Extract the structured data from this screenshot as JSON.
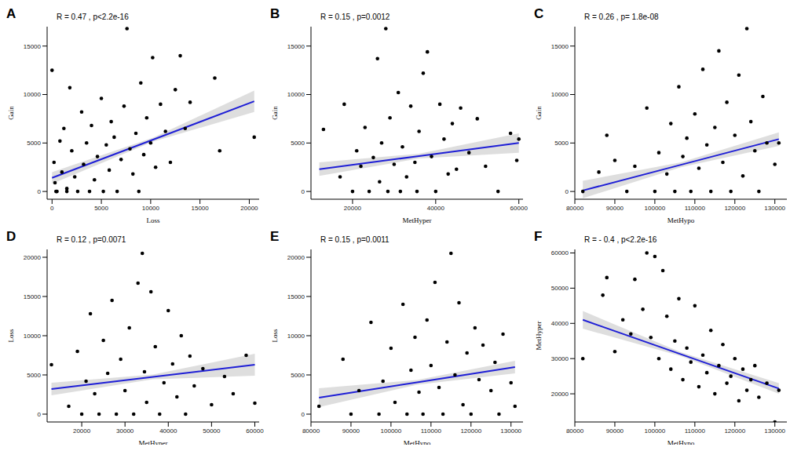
{
  "chart_data": [
    {
      "panel": "A",
      "type": "scatter",
      "annotation": "R = 0.47 , p<2.2e-16",
      "xlabel": "Loss",
      "ylabel": "Gain",
      "color": "#000000",
      "grid": false,
      "xlim": [
        -500,
        21000
      ],
      "xticks": [
        0,
        5000,
        10000,
        15000,
        20000
      ],
      "ylim": [
        -800,
        17000
      ],
      "yticks": [
        0,
        5000,
        10000,
        15000
      ],
      "x": [
        0,
        200,
        300,
        500,
        800,
        1000,
        1200,
        1500,
        1800,
        2000,
        2300,
        2600,
        3000,
        3200,
        3500,
        3800,
        4000,
        4300,
        4600,
        5000,
        5200,
        5500,
        5800,
        6000,
        6300,
        6600,
        7000,
        7300,
        7600,
        7900,
        8200,
        8500,
        8800,
        9000,
        9300,
        9600,
        10000,
        10200,
        10500,
        11000,
        11500,
        12000,
        12500,
        13000,
        13500,
        14000,
        16500,
        17000,
        20500,
        400,
        1500
      ],
      "y": [
        12500,
        3000,
        900,
        0,
        5200,
        2000,
        6500,
        300,
        10700,
        4200,
        1500,
        0,
        8200,
        2800,
        5000,
        0,
        6800,
        1200,
        3600,
        9600,
        0,
        4800,
        2200,
        7200,
        5600,
        0,
        3300,
        8800,
        16800,
        4400,
        1800,
        6000,
        0,
        11200,
        3800,
        7600,
        5000,
        13800,
        2500,
        9000,
        6200,
        3000,
        10500,
        14000,
        6500,
        9200,
        11700,
        4200,
        5600,
        0,
        0
      ],
      "fit": {
        "color": "#1f1fd6",
        "x": [
          0,
          10250,
          20500
        ],
        "y": [
          1400,
          5350,
          9300
        ],
        "lower": [
          800,
          5150,
          8200
        ],
        "upper": [
          2000,
          5550,
          10400
        ]
      }
    },
    {
      "panel": "B",
      "type": "scatter",
      "annotation": "R = 0.15 , p=0.0012",
      "xlabel": "MetHyper",
      "ylabel": "Gain",
      "color": "#000000",
      "grid": false,
      "xlim": [
        10000,
        61000
      ],
      "xticks": [
        20000,
        40000,
        60000
      ],
      "ylim": [
        -800,
        17000
      ],
      "yticks": [
        0,
        5000,
        10000,
        15000
      ],
      "x": [
        13000,
        17000,
        18000,
        20000,
        21000,
        22000,
        23000,
        24000,
        25000,
        26000,
        26500,
        27000,
        28000,
        28500,
        29000,
        30000,
        31000,
        31500,
        32000,
        33000,
        34000,
        35000,
        35500,
        36000,
        37000,
        38000,
        39000,
        40000,
        41000,
        42000,
        43000,
        44000,
        45000,
        46000,
        48000,
        50000,
        52000,
        55000,
        58000,
        59500,
        60000
      ],
      "y": [
        6400,
        1500,
        9000,
        0,
        4200,
        2600,
        6600,
        0,
        3500,
        13700,
        1000,
        5000,
        16800,
        0,
        7600,
        2800,
        10200,
        0,
        4600,
        1500,
        8800,
        3000,
        0,
        6200,
        12200,
        14400,
        3600,
        0,
        9000,
        5400,
        1800,
        7000,
        2300,
        8600,
        4000,
        7500,
        2600,
        0,
        6000,
        3200,
        5400
      ],
      "fit": {
        "color": "#1f1fd6",
        "x": [
          12000,
          36000,
          60000
        ],
        "y": [
          2300,
          3650,
          5000
        ],
        "lower": [
          1600,
          3400,
          4000
        ],
        "upper": [
          3000,
          3900,
          6000
        ]
      }
    },
    {
      "panel": "C",
      "type": "scatter",
      "annotation": "R = 0.26 , p= 1.8e-08",
      "xlabel": "MetHypo",
      "ylabel": "Gain",
      "color": "#000000",
      "grid": false,
      "xlim": [
        80000,
        133000
      ],
      "xticks": [
        80000,
        90000,
        100000,
        110000,
        120000,
        130000
      ],
      "ylim": [
        -800,
        17000
      ],
      "yticks": [
        0,
        5000,
        10000,
        15000
      ],
      "x": [
        82000,
        86000,
        88000,
        90000,
        93000,
        95000,
        98000,
        100000,
        101000,
        103000,
        104000,
        105000,
        106000,
        107000,
        108000,
        109000,
        110000,
        111000,
        112000,
        113000,
        114000,
        115000,
        116000,
        117000,
        118000,
        119000,
        120000,
        121000,
        122000,
        123000,
        124000,
        125000,
        126000,
        127000,
        128000,
        130000,
        131000
      ],
      "y": [
        0,
        2000,
        5800,
        3200,
        0,
        2600,
        8600,
        0,
        4000,
        1800,
        7000,
        0,
        10800,
        3600,
        5500,
        0,
        8000,
        2400,
        12600,
        4800,
        0,
        6600,
        14500,
        3000,
        9200,
        0,
        5800,
        12000,
        1600,
        16800,
        7200,
        4200,
        0,
        9800,
        5000,
        2800,
        5000
      ],
      "fit": {
        "color": "#1f1fd6",
        "x": [
          82000,
          106500,
          131000
        ],
        "y": [
          100,
          2750,
          5400
        ],
        "lower": [
          -700,
          2500,
          4700
        ],
        "upper": [
          1100,
          3000,
          6100
        ]
      }
    },
    {
      "panel": "D",
      "type": "scatter",
      "annotation": "R = 0.12 , p=0.0071",
      "xlabel": "MetHyper",
      "ylabel": "Loss",
      "color": "#000000",
      "grid": false,
      "xlim": [
        12000,
        61000
      ],
      "xticks": [
        20000,
        30000,
        40000,
        50000,
        60000
      ],
      "ylim": [
        -1000,
        21000
      ],
      "yticks": [
        0,
        5000,
        10000,
        15000,
        20000
      ],
      "x": [
        13000,
        17000,
        19000,
        20000,
        21000,
        22000,
        23000,
        24000,
        25000,
        26000,
        27000,
        28000,
        29000,
        30000,
        31000,
        32000,
        33000,
        34000,
        34500,
        35000,
        36000,
        37000,
        38000,
        39000,
        40000,
        41000,
        42000,
        43000,
        44000,
        45000,
        46000,
        48000,
        50000,
        53000,
        55000,
        58000,
        60000
      ],
      "y": [
        6300,
        1000,
        8000,
        0,
        4200,
        12800,
        2600,
        0,
        9400,
        5200,
        14500,
        0,
        7000,
        3000,
        11000,
        0,
        16700,
        20500,
        5400,
        1500,
        15600,
        8600,
        0,
        4000,
        13200,
        6400,
        2200,
        10000,
        0,
        7400,
        3600,
        5800,
        1200,
        4800,
        2600,
        7500,
        1400
      ],
      "fit": {
        "color": "#1f1fd6",
        "x": [
          13000,
          36500,
          60000
        ],
        "y": [
          3200,
          4750,
          6300
        ],
        "lower": [
          2400,
          4450,
          4900
        ],
        "upper": [
          4000,
          5050,
          7700
        ]
      }
    },
    {
      "panel": "E",
      "type": "scatter",
      "annotation": "R = 0.15 , p=0.0011",
      "xlabel": "MetHypo",
      "ylabel": "Loss",
      "color": "#000000",
      "grid": false,
      "xlim": [
        80000,
        133000
      ],
      "xticks": [
        80000,
        90000,
        100000,
        110000,
        120000,
        130000
      ],
      "ylim": [
        -1000,
        21000
      ],
      "yticks": [
        0,
        5000,
        10000,
        15000,
        20000
      ],
      "x": [
        82000,
        88000,
        90000,
        92000,
        95000,
        97000,
        98000,
        100000,
        101000,
        103000,
        104000,
        105000,
        106000,
        107000,
        108000,
        109000,
        110000,
        111000,
        112000,
        113000,
        114000,
        115000,
        116000,
        117000,
        118000,
        119000,
        120000,
        121000,
        122000,
        123000,
        125000,
        126000,
        127000,
        128000,
        130000,
        131000
      ],
      "y": [
        1000,
        7000,
        0,
        3000,
        11700,
        0,
        4200,
        8400,
        1500,
        14000,
        0,
        5600,
        9800,
        2800,
        0,
        12000,
        6200,
        16800,
        3400,
        0,
        9200,
        20500,
        5000,
        14200,
        1200,
        7800,
        0,
        11000,
        4400,
        8800,
        3000,
        6600,
        0,
        10200,
        4000,
        1000
      ],
      "fit": {
        "color": "#1f1fd6",
        "x": [
          82000,
          106500,
          131000
        ],
        "y": [
          2100,
          4050,
          6000
        ],
        "lower": [
          900,
          3750,
          5200
        ],
        "upper": [
          3300,
          4350,
          6800
        ]
      }
    },
    {
      "panel": "F",
      "type": "scatter",
      "annotation": "R = - 0.4 , p<2.2e-16",
      "xlabel": "MetHypo",
      "ylabel": "MetHyper",
      "color": "#000000",
      "grid": false,
      "xlim": [
        80000,
        133000
      ],
      "xticks": [
        80000,
        90000,
        100000,
        110000,
        120000,
        130000
      ],
      "ylim": [
        12000,
        61000
      ],
      "yticks": [
        20000,
        30000,
        40000,
        50000,
        60000
      ],
      "x": [
        82000,
        87000,
        88000,
        90000,
        92000,
        94000,
        95000,
        97000,
        98000,
        99000,
        100000,
        101000,
        102000,
        103000,
        104000,
        105000,
        106000,
        107000,
        108000,
        109000,
        110000,
        111000,
        112000,
        113000,
        114000,
        115000,
        116000,
        117000,
        118000,
        119000,
        120000,
        121000,
        122000,
        123000,
        124000,
        125000,
        126000,
        128000,
        130000,
        131000
      ],
      "y": [
        30000,
        48000,
        53000,
        32000,
        41000,
        37000,
        52500,
        44000,
        60000,
        36000,
        59000,
        30000,
        55000,
        42000,
        27000,
        35000,
        47000,
        24000,
        33000,
        29000,
        45000,
        22000,
        31000,
        26000,
        38000,
        20000,
        28000,
        34000,
        23000,
        25000,
        30000,
        18000,
        27000,
        21000,
        24000,
        28000,
        19000,
        23000,
        12000,
        21000
      ],
      "fit": {
        "color": "#1f1fd6",
        "x": [
          82000,
          106500,
          131000
        ],
        "y": [
          41000,
          31250,
          21500
        ],
        "lower": [
          38500,
          30700,
          20000
        ],
        "upper": [
          43500,
          31800,
          23000
        ]
      }
    }
  ]
}
